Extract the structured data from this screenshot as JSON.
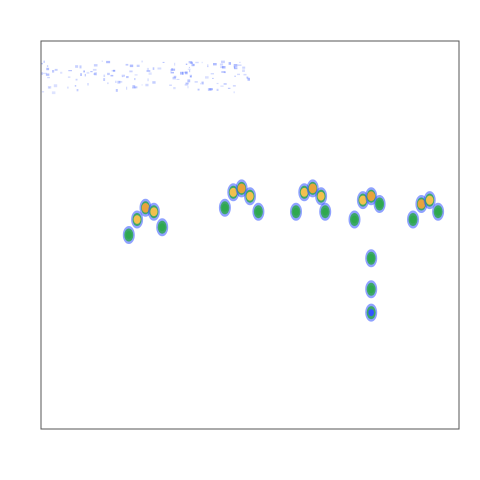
{
  "chart_data": {
    "type": "heatmap",
    "title": "",
    "xlabel": "",
    "ylabel": "",
    "xlim": [
      0,
      1
    ],
    "ylim": [
      0,
      1
    ],
    "grid": false,
    "legend": "none",
    "colors": {
      "background": "#ffffff",
      "frame": "#555555",
      "low": "#3355ff",
      "mid": "#2fa84f",
      "high": "#f2c14e",
      "peak": "#e8a33c"
    },
    "noise_band": {
      "x": [
        0.0,
        0.5
      ],
      "y": [
        0.87,
        0.95
      ],
      "level": 0.25
    },
    "series": [
      {
        "values": [
          {
            "x": 0.21,
            "y": 0.5,
            "level": 0.55
          },
          {
            "x": 0.23,
            "y": 0.54,
            "level": 0.75
          },
          {
            "x": 0.25,
            "y": 0.57,
            "level": 0.9
          },
          {
            "x": 0.27,
            "y": 0.56,
            "level": 0.8
          },
          {
            "x": 0.29,
            "y": 0.52,
            "level": 0.55
          }
        ]
      },
      {
        "values": [
          {
            "x": 0.44,
            "y": 0.57,
            "level": 0.6
          },
          {
            "x": 0.46,
            "y": 0.61,
            "level": 0.85
          },
          {
            "x": 0.48,
            "y": 0.62,
            "level": 0.95
          },
          {
            "x": 0.5,
            "y": 0.6,
            "level": 0.8
          },
          {
            "x": 0.52,
            "y": 0.56,
            "level": 0.55
          }
        ]
      },
      {
        "values": [
          {
            "x": 0.61,
            "y": 0.56,
            "level": 0.55
          },
          {
            "x": 0.63,
            "y": 0.61,
            "level": 0.8
          },
          {
            "x": 0.65,
            "y": 0.62,
            "level": 0.95
          },
          {
            "x": 0.67,
            "y": 0.6,
            "level": 0.75
          },
          {
            "x": 0.68,
            "y": 0.56,
            "level": 0.5
          }
        ]
      },
      {
        "values": [
          {
            "x": 0.75,
            "y": 0.54,
            "level": 0.55
          },
          {
            "x": 0.77,
            "y": 0.59,
            "level": 0.85
          },
          {
            "x": 0.79,
            "y": 0.6,
            "level": 0.95
          },
          {
            "x": 0.81,
            "y": 0.58,
            "level": 0.7
          },
          {
            "x": 0.79,
            "y": 0.44,
            "level": 0.7
          },
          {
            "x": 0.79,
            "y": 0.36,
            "level": 0.55
          },
          {
            "x": 0.79,
            "y": 0.3,
            "level": 0.4
          }
        ]
      },
      {
        "values": [
          {
            "x": 0.89,
            "y": 0.54,
            "level": 0.6
          },
          {
            "x": 0.91,
            "y": 0.58,
            "level": 0.9
          },
          {
            "x": 0.93,
            "y": 0.59,
            "level": 0.85
          },
          {
            "x": 0.95,
            "y": 0.56,
            "level": 0.6
          }
        ]
      }
    ]
  }
}
